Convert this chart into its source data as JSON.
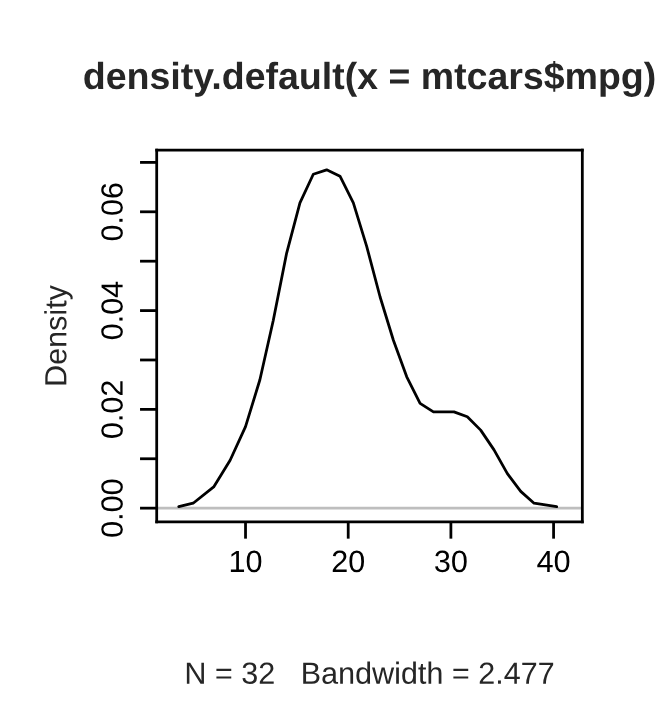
{
  "chart_data": {
    "type": "line",
    "title": "density.default(x = mtcars$mpg)",
    "xlabel": "N = 32   Bandwidth = 2.477",
    "ylabel": "Density",
    "x": [
      3.5,
      4.9,
      6.9,
      8.5,
      10,
      11.4,
      12.7,
      14.0,
      15.3,
      16.6,
      17.9,
      19.2,
      20.5,
      21.8,
      23.1,
      24.4,
      25.7,
      27.0,
      28.3,
      30.3,
      31.6,
      32.9,
      34.2,
      35.5,
      36.8,
      38.1,
      40.3
    ],
    "series": [
      {
        "color": "#000000",
        "values": [
          0.0003,
          0.001,
          0.0043,
          0.0097,
          0.0165,
          0.026,
          0.038,
          0.0516,
          0.0618,
          0.0676,
          0.0685,
          0.0672,
          0.0618,
          0.053,
          0.0428,
          0.034,
          0.0266,
          0.0212,
          0.0195,
          0.0195,
          0.0185,
          0.0158,
          0.0118,
          0.007,
          0.0034,
          0.001,
          0.0003
        ]
      }
    ],
    "xlim": [
      1.35,
      42.8
    ],
    "ylim": [
      -0.0028,
      0.0725
    ],
    "xticks": [
      10,
      20,
      30,
      40
    ],
    "yticks": [
      {
        "value": 0,
        "label": "0.00"
      },
      {
        "value": 0.01,
        "label": null
      },
      {
        "value": 0.02,
        "label": "0.02"
      },
      {
        "value": 0.03,
        "label": null
      },
      {
        "value": 0.04,
        "label": "0.04"
      },
      {
        "value": 0.05,
        "label": null
      },
      {
        "value": 0.06,
        "label": "0.06"
      },
      {
        "value": 0.07,
        "label": null
      }
    ],
    "ref_lines": [
      {
        "axis": "y",
        "value": 0,
        "label": null,
        "color": "#bebebe",
        "line_style": "solid"
      }
    ],
    "grid": false,
    "legend": false,
    "line_style": "solid",
    "marker": "none"
  }
}
